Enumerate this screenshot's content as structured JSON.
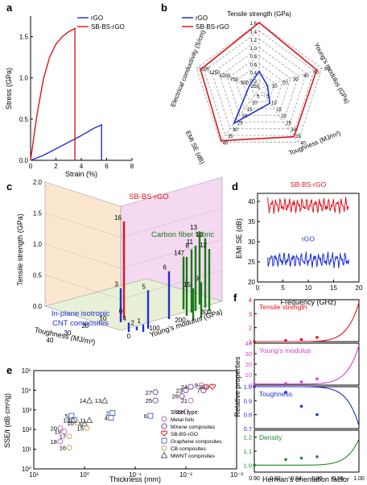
{
  "chart_data": [
    {
      "panel": "a",
      "type": "line",
      "xlabel": "Strain (%)",
      "ylabel": "Stress (GPa)",
      "xlim": [
        0,
        8
      ],
      "ylim": [
        0,
        1.6
      ],
      "xticks": [
        "0",
        "2",
        "4",
        "6",
        "8"
      ],
      "yticks": [
        "0.0",
        "0.5",
        "1.0",
        "1.5"
      ],
      "legend": "top-right",
      "series": [
        {
          "name": "rGO",
          "color": "#1f2fd1",
          "x": [
            0,
            1,
            2,
            3,
            4,
            5,
            5.6,
            5.6
          ],
          "y": [
            0,
            0.06,
            0.14,
            0.22,
            0.3,
            0.39,
            0.43,
            0
          ]
        },
        {
          "name": "SB-BS-rGO",
          "color": "#e0141c",
          "x": [
            0,
            0.5,
            1,
            1.5,
            2,
            2.5,
            3,
            3.5,
            3.5
          ],
          "y": [
            0,
            0.55,
            0.98,
            1.25,
            1.41,
            1.5,
            1.56,
            1.6,
            0
          ]
        }
      ]
    },
    {
      "panel": "b",
      "type": "radar",
      "legend": "top-left",
      "axes": [
        {
          "label": "Tensile strength (GPa)",
          "ticks": [
            "0.2",
            "0.4",
            "0.6",
            "0.8",
            "1.0",
            "1.2",
            "1.4",
            "1.6"
          ]
        },
        {
          "label": "Young's modulus (GPa)",
          "ticks": [
            "10",
            "20",
            "30",
            "40",
            "50",
            "60"
          ]
        },
        {
          "label": "Toughness (MJ/m³)",
          "ticks": [
            "5",
            "10",
            "15",
            "20",
            "25",
            "30",
            "35",
            "40"
          ]
        },
        {
          "label": "EMI SE (dB)",
          "ticks": [
            "5",
            "10",
            "15",
            "20",
            "25",
            "30",
            "35",
            "40"
          ]
        },
        {
          "label": "Electrical conductivity (S/cm)",
          "ticks": [
            "250",
            "500",
            "750",
            "1000",
            "1250",
            "1500"
          ]
        }
      ],
      "series": [
        {
          "name": "rGO",
          "color": "#1f2fd1",
          "values": [
            0.42,
            8,
            11,
            26,
            230
          ]
        },
        {
          "name": "SB-BS-rGO",
          "color": "#e0141c",
          "values": [
            1.6,
            55,
            36,
            39,
            1400
          ]
        }
      ]
    },
    {
      "panel": "c",
      "type": "bar3d",
      "xlabel": "Toughness (MJ/m³)",
      "ylabel": "Young's modulus (GPa)",
      "zlabel": "Tensile strength (GPa)",
      "xticks": [
        "0",
        "10",
        "20",
        "30",
        "40"
      ],
      "yticks": [
        "0",
        "100",
        "200",
        "300"
      ],
      "zticks": [
        "0.0",
        "0.5",
        "1.0",
        "1.5",
        "2.0"
      ],
      "annotations": [
        "SB-BS-rGO",
        "Carbon fiber fabric",
        "In-plane isotropic CNT composites"
      ],
      "bars": [
        {
          "id": "16",
          "group": "SB-BS-rGO",
          "z": 1.56
        },
        {
          "id": "1",
          "group": "CNT",
          "z": 0.12
        },
        {
          "id": "2",
          "group": "CNT",
          "z": 0.06
        },
        {
          "id": "3",
          "group": "CNT",
          "z": 0.55
        },
        {
          "id": "4",
          "group": "CNT",
          "z": 0.15
        },
        {
          "id": "5",
          "group": "CNT",
          "z": 0.62
        },
        {
          "id": "6",
          "group": "CNT",
          "z": 0.77
        },
        {
          "id": "7",
          "group": "CFF",
          "z": 0.95
        },
        {
          "id": "8",
          "group": "CFF",
          "z": 1.02
        },
        {
          "id": "9",
          "group": "CFF",
          "z": 0.58
        },
        {
          "id": "10",
          "group": "CFF",
          "z": 1.12
        },
        {
          "id": "11",
          "group": "CFF",
          "z": 1.05
        },
        {
          "id": "12",
          "group": "CFF",
          "z": 1.0
        },
        {
          "id": "13",
          "group": "CFF",
          "z": 1.18
        },
        {
          "id": "14",
          "group": "CFF",
          "z": 0.85
        },
        {
          "id": "15",
          "group": "CFF",
          "z": 0.52
        }
      ]
    },
    {
      "panel": "d",
      "type": "line",
      "xlabel": "Frequency (GHz)",
      "ylabel": "EMI SE (dB)",
      "xlim": [
        0,
        20
      ],
      "ylim": [
        20,
        42
      ],
      "xticks": [
        "0",
        "5",
        "10",
        "15",
        "20"
      ],
      "yticks": [
        "20",
        "25",
        "30",
        "35",
        "40"
      ],
      "series": [
        {
          "name": "SB-BS-rGO",
          "color": "#e0141c",
          "mean": 39,
          "x_range": [
            2,
            18
          ]
        },
        {
          "name": "rGO",
          "color": "#1f2fd1",
          "mean": 25.5,
          "x_range": [
            2,
            18
          ]
        }
      ]
    },
    {
      "panel": "e",
      "type": "scatter",
      "xlabel": "Thickness (mm)",
      "ylabel": "SSE/t (dB·cm²/g)",
      "xscale": "log",
      "yscale": "log",
      "xlim": [
        10,
        0.001
      ],
      "ylim": [
        1,
        100000
      ],
      "xticks": [
        "10¹",
        "10⁰",
        "10⁻¹",
        "10⁻²",
        "10⁻³"
      ],
      "yticks": [
        "10⁰",
        "10¹",
        "10²",
        "10³",
        "10⁴",
        "10⁵"
      ],
      "legend_title": "Sheet type:",
      "legend": [
        {
          "name": "Metal foils",
          "marker": "circle",
          "color": "#c060c0"
        },
        {
          "name": "MXene composites",
          "marker": "hexagon",
          "color": "#7a3f9f"
        },
        {
          "name": "SB-BS-rGO",
          "marker": "heart",
          "color": "#e0141c"
        },
        {
          "name": "Graphene composites",
          "marker": "square",
          "color": "#4a5ec8"
        },
        {
          "name": "CB composites",
          "marker": "circle",
          "color": "#c0a060"
        },
        {
          "name": "MWNT composites",
          "marker": "triangle",
          "color": "#555555"
        }
      ],
      "points": [
        {
          "id": "1",
          "type": "Graphene composites",
          "x": 1.6,
          "y": 300
        },
        {
          "id": "2",
          "type": "Graphene composites",
          "x": 0.28,
          "y": 700
        },
        {
          "id": "3",
          "type": "MWNT composites",
          "x": 1.0,
          "y": 200
        },
        {
          "id": "4",
          "type": "Graphene composites",
          "x": 0.3,
          "y": 400
        },
        {
          "id": "5",
          "type": "Graphene composites",
          "x": 1.8,
          "y": 500
        },
        {
          "id": "6",
          "type": "Graphene composites",
          "x": 0.05,
          "y": 500
        },
        {
          "id": "7",
          "type": "MXene composites",
          "x": 0.0045,
          "y": 10000
        },
        {
          "id": "8",
          "type": "MXene composites",
          "x": 0.004,
          "y": 15000
        },
        {
          "id": "9",
          "type": "Metal foils",
          "x": 0.005,
          "y": 18000
        },
        {
          "id": "10",
          "type": "CB composites",
          "x": 1.4,
          "y": 220
        },
        {
          "id": "11",
          "type": "MWNT composites",
          "x": 0.8,
          "y": 300
        },
        {
          "id": "12",
          "type": "MWNT composites",
          "x": 1.7,
          "y": 300
        },
        {
          "id": "13",
          "type": "MWNT composites",
          "x": 0.4,
          "y": 3000
        },
        {
          "id": "14",
          "type": "MWNT composites",
          "x": 0.8,
          "y": 3000
        },
        {
          "id": "15",
          "type": "CB composites",
          "x": 0.9,
          "y": 120
        },
        {
          "id": "16",
          "type": "CB composites",
          "x": 2.0,
          "y": 12
        },
        {
          "id": "17",
          "type": "CB composites",
          "x": 2.0,
          "y": 45
        },
        {
          "id": "18",
          "type": "Metal foils",
          "x": 3.0,
          "y": 25
        },
        {
          "id": "19",
          "type": "Metal foils",
          "x": 2.5,
          "y": 80
        },
        {
          "id": "20",
          "type": "Metal foils",
          "x": 3.0,
          "y": 120
        },
        {
          "id": "21",
          "type": "Metal foils",
          "x": 0.008,
          "y": 3000
        },
        {
          "id": "22",
          "type": "Metal foils",
          "x": 0.01,
          "y": 800
        },
        {
          "id": "23",
          "type": "MXene composites",
          "x": 0.01,
          "y": 10000
        },
        {
          "id": "24",
          "type": "MXene composites",
          "x": 0.008,
          "y": 15000
        },
        {
          "id": "25",
          "type": "MXene composites",
          "x": 0.04,
          "y": 3000
        },
        {
          "id": "26",
          "type": "MXene composites",
          "x": 0.012,
          "y": 5000
        },
        {
          "id": "27",
          "type": "MXene composites",
          "x": 0.04,
          "y": 8000
        },
        {
          "id": "28",
          "type": "SB-BS-rGO",
          "x": 0.003,
          "y": 15000
        }
      ]
    },
    {
      "panel": "f",
      "type": "line",
      "xlabel": "Herman's orientation factor",
      "ylabel": "Relative properties",
      "xlim": [
        0.9,
        1.0
      ],
      "xticks": [
        "0.90",
        "0.92",
        "0.94",
        "0.96",
        "0.98",
        "1.00"
      ],
      "subplots": [
        {
          "name": "Tensile strength",
          "color": "#e0141c",
          "ylim": [
            1,
            4
          ],
          "yticks": [
            "1",
            "2",
            "3",
            "4"
          ],
          "x": [
            0.9,
            0.93,
            0.945,
            0.96
          ],
          "y": [
            1,
            1.08,
            1.15,
            1.3
          ]
        },
        {
          "name": "Young's modulus",
          "color": "#d040d0",
          "ylim": [
            0,
            40
          ],
          "yticks": [
            "0",
            "10",
            "20",
            "30",
            "40"
          ],
          "x": [
            0.9,
            0.93,
            0.945,
            0.96
          ],
          "y": [
            1,
            1.5,
            3,
            6
          ]
        },
        {
          "name": "Toughness",
          "color": "#1f2fd1",
          "ylim": [
            0.7,
            1.0
          ],
          "yticks": [
            "0.7",
            "0.8",
            "0.9",
            "1.0"
          ],
          "x": [
            0.9,
            0.93,
            0.945,
            0.96
          ],
          "y": [
            1.0,
            0.96,
            0.86,
            0.8
          ]
        },
        {
          "name": "Density",
          "color": "#1a8a2a",
          "ylim": [
            0.95,
            1.25
          ],
          "yticks": [
            "1.0",
            "1.1",
            "1.2"
          ],
          "x": [
            0.9,
            0.93,
            0.945,
            0.96
          ],
          "y": [
            1.0,
            1.04,
            1.05,
            1.06
          ]
        }
      ]
    }
  ],
  "labels": {
    "a": "a",
    "b": "b",
    "c": "c",
    "d": "d",
    "e": "e",
    "f": "f"
  }
}
